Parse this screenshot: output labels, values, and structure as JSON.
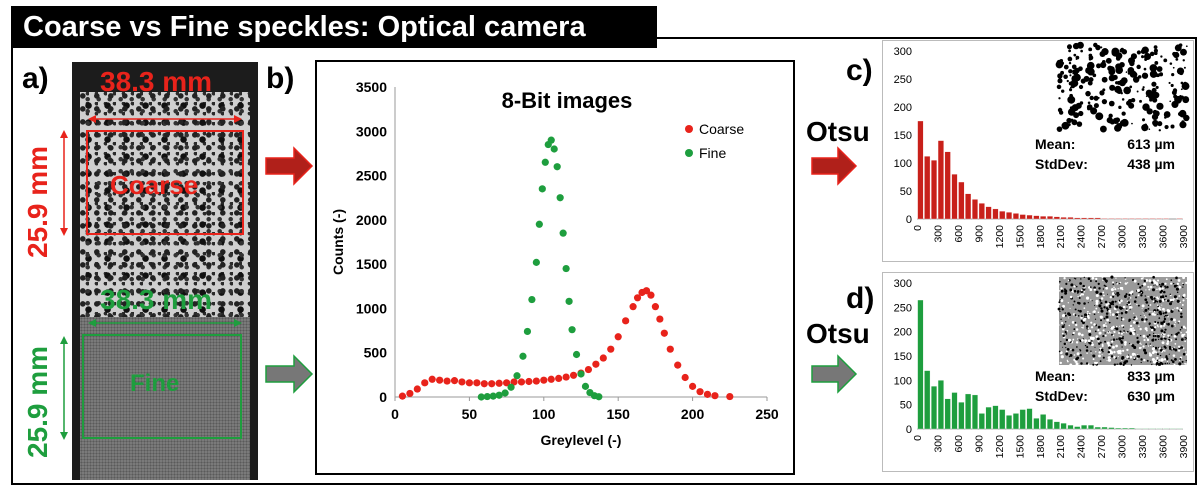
{
  "title": "Coarse vs Fine speckles: Optical camera",
  "panels": {
    "a": "a)",
    "b": "b)",
    "c": "c)",
    "d": "d)"
  },
  "photo": {
    "coarse_width": "38.3 mm",
    "coarse_height": "25.9 mm",
    "coarse_label": "Coarse",
    "fine_width": "38.3 mm",
    "fine_height": "25.9 mm",
    "fine_label": "Fine"
  },
  "otsu_c": "Otsu",
  "otsu_d": "Otsu",
  "colors": {
    "coarse": "#e8231b",
    "fine": "#1e9e3e",
    "arrow_fill_c": "#b0201a",
    "arrow_fill_d": "#777777"
  },
  "chart_data": [
    {
      "type": "scatter",
      "title": "8-Bit images",
      "xlabel": "Greylevel (-)",
      "ylabel": "Counts (-)",
      "xlim": [
        0,
        250
      ],
      "ylim": [
        0,
        3500
      ],
      "xticks": [
        0,
        50,
        100,
        150,
        200,
        250
      ],
      "yticks": [
        0,
        500,
        1000,
        1500,
        2000,
        2500,
        3000,
        3500
      ],
      "legend_position": "top-right",
      "series": [
        {
          "name": "Coarse",
          "color": "#e8231b",
          "points": [
            [
              5,
              10
            ],
            [
              10,
              40
            ],
            [
              15,
              90
            ],
            [
              20,
              160
            ],
            [
              25,
              200
            ],
            [
              30,
              190
            ],
            [
              35,
              180
            ],
            [
              40,
              185
            ],
            [
              45,
              170
            ],
            [
              50,
              160
            ],
            [
              55,
              160
            ],
            [
              60,
              150
            ],
            [
              65,
              150
            ],
            [
              70,
              155
            ],
            [
              75,
              160
            ],
            [
              80,
              170
            ],
            [
              85,
              170
            ],
            [
              90,
              175
            ],
            [
              95,
              180
            ],
            [
              100,
              190
            ],
            [
              105,
              200
            ],
            [
              110,
              210
            ],
            [
              115,
              225
            ],
            [
              120,
              245
            ],
            [
              125,
              270
            ],
            [
              130,
              310
            ],
            [
              135,
              370
            ],
            [
              140,
              440
            ],
            [
              145,
              540
            ],
            [
              150,
              680
            ],
            [
              155,
              860
            ],
            [
              160,
              1020
            ],
            [
              163,
              1120
            ],
            [
              166,
              1180
            ],
            [
              169,
              1200
            ],
            [
              172,
              1150
            ],
            [
              175,
              1020
            ],
            [
              178,
              880
            ],
            [
              181,
              720
            ],
            [
              185,
              540
            ],
            [
              190,
              360
            ],
            [
              195,
              220
            ],
            [
              200,
              120
            ],
            [
              205,
              60
            ],
            [
              210,
              30
            ],
            [
              215,
              15
            ],
            [
              225,
              5
            ]
          ]
        },
        {
          "name": "Fine",
          "color": "#1e9e3e",
          "points": [
            [
              58,
              0
            ],
            [
              62,
              5
            ],
            [
              66,
              10
            ],
            [
              70,
              20
            ],
            [
              74,
              45
            ],
            [
              78,
              110
            ],
            [
              82,
              240
            ],
            [
              86,
              460
            ],
            [
              89,
              740
            ],
            [
              92,
              1100
            ],
            [
              95,
              1520
            ],
            [
              97,
              1950
            ],
            [
              99,
              2350
            ],
            [
              101,
              2650
            ],
            [
              103,
              2850
            ],
            [
              105,
              2900
            ],
            [
              107,
              2800
            ],
            [
              109,
              2600
            ],
            [
              111,
              2250
            ],
            [
              113,
              1850
            ],
            [
              115,
              1450
            ],
            [
              117,
              1080
            ],
            [
              119,
              760
            ],
            [
              122,
              480
            ],
            [
              125,
              260
            ],
            [
              128,
              120
            ],
            [
              131,
              50
            ],
            [
              134,
              15
            ],
            [
              137,
              3
            ]
          ]
        }
      ]
    },
    {
      "type": "bar",
      "panel": "c",
      "color": "#c8201a",
      "xticks": [
        0,
        300,
        600,
        900,
        1200,
        1500,
        1800,
        2100,
        2400,
        2700,
        3000,
        3300,
        3600,
        3900
      ],
      "yticks": [
        0,
        50,
        100,
        150,
        200,
        250,
        300
      ],
      "xlim": [
        0,
        3900
      ],
      "ylim": [
        0,
        300
      ],
      "bin_width": 100,
      "values": [
        175,
        112,
        105,
        140,
        120,
        80,
        66,
        45,
        35,
        28,
        22,
        18,
        14,
        12,
        10,
        8,
        7,
        6,
        5,
        5,
        4,
        3,
        3,
        2,
        2,
        2,
        2,
        1,
        1,
        1,
        1,
        1,
        1,
        1,
        1,
        1,
        1,
        0,
        1
      ],
      "stats": {
        "mean_label": "Mean:",
        "mean_value": "613 µm",
        "std_label": "StdDev:",
        "std_value": "438 µm"
      }
    },
    {
      "type": "bar",
      "panel": "d",
      "color": "#1e9e3e",
      "xticks": [
        0,
        300,
        600,
        900,
        1200,
        1500,
        1800,
        2100,
        2400,
        2700,
        3000,
        3300,
        3600,
        3900
      ],
      "yticks": [
        0,
        50,
        100,
        150,
        200,
        250,
        300
      ],
      "xlim": [
        0,
        3900
      ],
      "ylim": [
        0,
        300
      ],
      "bin_width": 100,
      "values": [
        265,
        120,
        88,
        100,
        62,
        75,
        55,
        72,
        70,
        32,
        45,
        48,
        40,
        28,
        32,
        40,
        42,
        22,
        30,
        20,
        15,
        12,
        8,
        5,
        8,
        8,
        4,
        4,
        3,
        2,
        2,
        2,
        1,
        1,
        1,
        1,
        1,
        1,
        1
      ],
      "stats": {
        "mean_label": "Mean:",
        "mean_value": "833 µm",
        "std_label": "StdDev:",
        "std_value": "630 µm"
      }
    }
  ]
}
